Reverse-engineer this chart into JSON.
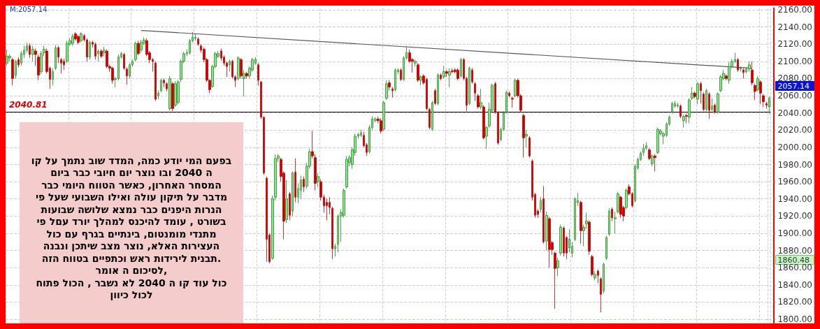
{
  "chart_data": {
    "type": "candlestick",
    "categories": [
      null,
      null,
      null,
      null,
      null,
      null,
      null,
      null,
      null,
      null,
      null,
      null,
      null,
      null,
      null,
      null,
      null,
      null,
      null,
      null,
      null,
      null,
      null,
      null,
      null,
      null,
      null,
      null,
      null,
      null,
      null,
      null,
      null,
      null,
      null,
      null,
      null,
      null,
      null,
      null,
      null,
      null,
      null,
      null,
      null,
      null,
      null,
      null,
      null,
      null,
      null,
      null,
      null,
      null,
      null,
      null,
      null,
      null,
      null,
      null,
      null,
      null,
      null,
      null,
      null,
      null,
      null,
      null,
      null,
      null,
      null,
      null,
      null,
      null,
      null,
      null,
      null,
      null,
      null,
      null,
      null,
      null,
      null,
      null,
      null,
      null,
      null,
      null,
      null,
      null,
      null,
      null,
      null,
      null,
      null,
      null,
      null,
      null,
      null,
      null,
      null,
      null,
      null,
      null,
      null,
      null,
      null,
      null,
      null,
      null,
      null,
      null,
      null,
      null,
      null,
      null,
      null,
      null,
      null,
      null,
      null,
      null,
      null,
      null,
      null,
      null,
      null,
      null,
      null,
      null,
      null,
      null,
      null,
      null,
      null,
      null,
      null,
      null,
      null,
      null,
      null,
      null,
      null,
      null,
      null,
      null,
      null,
      null,
      null,
      null,
      null,
      null,
      null,
      null,
      null,
      null,
      null,
      null,
      null,
      null,
      null,
      null,
      null,
      null,
      null,
      null,
      null,
      null,
      null,
      null,
      null,
      null,
      null,
      null,
      null,
      null,
      null,
      null,
      null,
      null,
      null,
      null,
      null,
      null,
      null,
      null,
      null,
      null,
      null,
      null,
      null,
      null,
      null,
      null,
      null,
      null,
      null,
      null,
      null,
      null,
      null,
      null,
      null,
      null,
      null,
      null,
      null,
      null,
      null,
      null,
      null,
      null,
      null,
      null,
      null,
      null,
      null,
      null,
      null,
      null,
      null,
      null,
      null,
      null,
      null,
      null,
      null,
      null,
      null,
      null,
      null,
      null,
      null,
      null,
      null,
      null,
      null,
      null,
      null,
      null,
      null,
      null,
      null,
      null,
      null,
      null,
      null,
      null,
      null,
      null,
      null,
      null,
      null,
      null,
      null,
      null,
      null,
      null,
      null,
      null,
      null,
      null,
      null,
      null,
      null,
      null,
      null,
      null
    ],
    "ohlc": [
      [
        2098,
        2114,
        2095,
        2106
      ],
      [
        2104,
        2108,
        2100,
        2106
      ],
      [
        2102,
        2104,
        2072,
        2080
      ],
      [
        2084,
        2102,
        2080,
        2100
      ],
      [
        2102,
        2105,
        2093,
        2096
      ],
      [
        2098,
        2112,
        2095,
        2109
      ],
      [
        2108,
        2118,
        2104,
        2113
      ],
      [
        2113,
        2122,
        2110,
        2118
      ],
      [
        2118,
        2121,
        2104,
        2108
      ],
      [
        2108,
        2118,
        2100,
        2114
      ],
      [
        2112,
        2115,
        2095,
        2108
      ],
      [
        2105,
        2108,
        2078,
        2084
      ],
      [
        2088,
        2112,
        2085,
        2109
      ],
      [
        2110,
        2118,
        2106,
        2114
      ],
      [
        2112,
        2115,
        2086,
        2088
      ],
      [
        2092,
        2094,
        2068,
        2079
      ],
      [
        2079,
        2092,
        2072,
        2088
      ],
      [
        2092,
        2119,
        2090,
        2116
      ],
      [
        2116,
        2118,
        2098,
        2105
      ],
      [
        2102,
        2104,
        2086,
        2098
      ],
      [
        2100,
        2103,
        2090,
        2096
      ],
      [
        2100,
        2124,
        2098,
        2121
      ],
      [
        2120,
        2127,
        2118,
        2124
      ],
      [
        2121,
        2132,
        2118,
        2129
      ],
      [
        2132,
        2134,
        2124,
        2126
      ],
      [
        2129,
        2131,
        2120,
        2122
      ],
      [
        2124,
        2134,
        2122,
        2132
      ],
      [
        2130,
        2132,
        2123,
        2125
      ],
      [
        2125,
        2127,
        2100,
        2105
      ],
      [
        2105,
        2124,
        2102,
        2122
      ],
      [
        2122,
        2124,
        2116,
        2120
      ],
      [
        2120,
        2122,
        2102,
        2106
      ],
      [
        2109,
        2114,
        2100,
        2112
      ],
      [
        2112,
        2114,
        2104,
        2106
      ],
      [
        2110,
        2117,
        2106,
        2113
      ],
      [
        2112,
        2114,
        2092,
        2094
      ],
      [
        2094,
        2096,
        2088,
        2092
      ],
      [
        2092,
        2094,
        2074,
        2078
      ],
      [
        2079,
        2082,
        2070,
        2080
      ],
      [
        2080,
        2108,
        2078,
        2105
      ],
      [
        2105,
        2111,
        2103,
        2109
      ],
      [
        2108,
        2110,
        2090,
        2092
      ],
      [
        2091,
        2093,
        2073,
        2083
      ],
      [
        2083,
        2098,
        2080,
        2096
      ],
      [
        2096,
        2102,
        2094,
        2100
      ],
      [
        2102,
        2123,
        2100,
        2121
      ],
      [
        2121,
        2124,
        2107,
        2109
      ],
      [
        2113,
        2125,
        2110,
        2122
      ],
      [
        2121,
        2128,
        2119,
        2125
      ],
      [
        2124,
        2127,
        2106,
        2108
      ],
      [
        2110,
        2112,
        2098,
        2102
      ],
      [
        2102,
        2104,
        2088,
        2100
      ],
      [
        2098,
        2100,
        2054,
        2056
      ],
      [
        2060,
        2066,
        2056,
        2063
      ],
      [
        2066,
        2080,
        2064,
        2078
      ],
      [
        2078,
        2080,
        2070,
        2075
      ],
      [
        2074,
        2076,
        2065,
        2068
      ],
      [
        2045,
        2083,
        2043,
        2080
      ],
      [
        2074,
        2076,
        2042,
        2045
      ],
      [
        2049,
        2077,
        2047,
        2074
      ],
      [
        2052,
        2078,
        2050,
        2076
      ],
      [
        2079,
        2102,
        2076,
        2100
      ],
      [
        2100,
        2111,
        2098,
        2109
      ],
      [
        2109,
        2114,
        2106,
        2110
      ],
      [
        2110,
        2126,
        2108,
        2124
      ],
      [
        2124,
        2134,
        2122,
        2128
      ],
      [
        2127,
        2132,
        2124,
        2128
      ],
      [
        2126,
        2128,
        2118,
        2120
      ],
      [
        2118,
        2120,
        2110,
        2113
      ],
      [
        2114,
        2116,
        2099,
        2102
      ],
      [
        2102,
        2104,
        2076,
        2078
      ],
      [
        2078,
        2079,
        2063,
        2067
      ],
      [
        2071,
        2096,
        2069,
        2094
      ],
      [
        2094,
        2111,
        2092,
        2109
      ],
      [
        2106,
        2112,
        2104,
        2109
      ],
      [
        2112,
        2115,
        2101,
        2104
      ],
      [
        2105,
        2107,
        2095,
        2098
      ],
      [
        2098,
        2100,
        2082,
        2094
      ],
      [
        2096,
        2102,
        2088,
        2100
      ],
      [
        2100,
        2102,
        2080,
        2082
      ],
      [
        2082,
        2084,
        2070,
        2078
      ],
      [
        2080,
        2106,
        2078,
        2104
      ],
      [
        2102,
        2104,
        2080,
        2083
      ],
      [
        2080,
        2090,
        2059,
        2086
      ],
      [
        2086,
        2088,
        2080,
        2083
      ],
      [
        2083,
        2094,
        2080,
        2092
      ],
      [
        2090,
        2104,
        2088,
        2102
      ],
      [
        2098,
        2105,
        2096,
        2102
      ],
      [
        2096,
        2098,
        2072,
        2078
      ],
      [
        2076,
        2077,
        2033,
        2035
      ],
      [
        2035,
        2036,
        1968,
        1970
      ],
      [
        1964,
        1966,
        1867,
        1893
      ],
      [
        1898,
        1900,
        1865,
        1867
      ],
      [
        1871,
        1944,
        1869,
        1940
      ],
      [
        1942,
        1992,
        1938,
        1987
      ],
      [
        1987,
        1992,
        1983,
        1990
      ],
      [
        1986,
        1988,
        1960,
        1966
      ],
      [
        1970,
        1972,
        1893,
        1914
      ],
      [
        1916,
        1962,
        1912,
        1940
      ],
      [
        1946,
        1948,
        1915,
        1921
      ],
      [
        1926,
        1972,
        1920,
        1970
      ],
      [
        1971,
        1987,
        1936,
        1942
      ],
      [
        1942,
        1958,
        1935,
        1952
      ],
      [
        1950,
        1967,
        1940,
        1962
      ],
      [
        1963,
        1966,
        1948,
        1954
      ],
      [
        1955,
        1982,
        1952,
        1978
      ],
      [
        1978,
        1998,
        1975,
        1995
      ],
      [
        1995,
        2019,
        1987,
        1990
      ],
      [
        1988,
        1992,
        1950,
        1958
      ],
      [
        1960,
        1970,
        1954,
        1966
      ],
      [
        1960,
        1963,
        1938,
        1942
      ],
      [
        1942,
        1945,
        1924,
        1932
      ],
      [
        1936,
        1940,
        1915,
        1932
      ],
      [
        1936,
        1942,
        1922,
        1930
      ],
      [
        1929,
        1931,
        1870,
        1882
      ],
      [
        1882,
        1888,
        1873,
        1885
      ],
      [
        1887,
        1922,
        1878,
        1920
      ],
      [
        1920,
        1928,
        1890,
        1924
      ],
      [
        1921,
        1952,
        1918,
        1950
      ],
      [
        1954,
        1990,
        1952,
        1986
      ],
      [
        1982,
        1991,
        1978,
        1988
      ],
      [
        1980,
        2000,
        1975,
        1997
      ],
      [
        1994,
        2016,
        1990,
        2013
      ],
      [
        2013,
        2017,
        2010,
        2015
      ],
      [
        2014,
        2020,
        2012,
        2017
      ],
      [
        2014,
        2018,
        2000,
        2002
      ],
      [
        2003,
        2005,
        1990,
        1994
      ],
      [
        1995,
        2026,
        1993,
        2023
      ],
      [
        2023,
        2036,
        2020,
        2033
      ],
      [
        2031,
        2035,
        2029,
        2033
      ],
      [
        2033,
        2036,
        2028,
        2031
      ],
      [
        2031,
        2034,
        2016,
        2019
      ],
      [
        2021,
        2054,
        2019,
        2052
      ],
      [
        2057,
        2078,
        2055,
        2074
      ],
      [
        2075,
        2078,
        2066,
        2070
      ],
      [
        2068,
        2070,
        2058,
        2066
      ],
      [
        2067,
        2092,
        2065,
        2090
      ],
      [
        2088,
        2092,
        2085,
        2090
      ],
      [
        2090,
        2092,
        2077,
        2079
      ],
      [
        2079,
        2106,
        2077,
        2104
      ],
      [
        2104,
        2117,
        2102,
        2110
      ],
      [
        2110,
        2114,
        2098,
        2100
      ],
      [
        2102,
        2104,
        2087,
        2100
      ],
      [
        2098,
        2102,
        2094,
        2100
      ],
      [
        2096,
        2098,
        2076,
        2078
      ],
      [
        2078,
        2084,
        2072,
        2082
      ],
      [
        2083,
        2085,
        2073,
        2075
      ],
      [
        2079,
        2081,
        2043,
        2045
      ],
      [
        2044,
        2046,
        2021,
        2023
      ],
      [
        2021,
        2054,
        2019,
        2052
      ],
      [
        2066,
        2068,
        2049,
        2051
      ],
      [
        2051,
        2086,
        2049,
        2084
      ],
      [
        2084,
        2086,
        2078,
        2080
      ],
      [
        2082,
        2095,
        2080,
        2088
      ],
      [
        2088,
        2090,
        2082,
        2086
      ],
      [
        2084,
        2092,
        2070,
        2088
      ],
      [
        2089,
        2092,
        2086,
        2088
      ],
      [
        2090,
        2092,
        2086,
        2088
      ],
      [
        2090,
        2092,
        2078,
        2080
      ],
      [
        2083,
        2104,
        2081,
        2102
      ],
      [
        2102,
        2104,
        2078,
        2080
      ],
      [
        2080,
        2082,
        2042,
        2049
      ],
      [
        2051,
        2094,
        2049,
        2092
      ],
      [
        2090,
        2092,
        2074,
        2076
      ],
      [
        2074,
        2076,
        2054,
        2063
      ],
      [
        2060,
        2062,
        2045,
        2047
      ],
      [
        2047,
        2068,
        2044,
        2052
      ],
      [
        2047,
        2049,
        2009,
        2011
      ],
      [
        2013,
        2025,
        1998,
        2023
      ],
      [
        2025,
        2052,
        2023,
        2044
      ],
      [
        2043,
        2074,
        2041,
        2072
      ],
      [
        2074,
        2076,
        2039,
        2041
      ],
      [
        2040,
        2042,
        2003,
        2005
      ],
      [
        2009,
        2023,
        2007,
        2021
      ],
      [
        2021,
        2042,
        2019,
        2040
      ],
      [
        2041,
        2066,
        2039,
        2064
      ],
      [
        2063,
        2065,
        2058,
        2060
      ],
      [
        2057,
        2059,
        2046,
        2056
      ],
      [
        2060,
        2080,
        2058,
        2078
      ],
      [
        2078,
        2080,
        2058,
        2060
      ],
      [
        2060,
        2062,
        2041,
        2043
      ],
      [
        2037,
        2039,
        1988,
        2011
      ],
      [
        2013,
        2020,
        2000,
        2015
      ],
      [
        2011,
        2013,
        1988,
        1990
      ],
      [
        1984,
        1986,
        1938,
        1942
      ],
      [
        1945,
        1947,
        1918,
        1921
      ],
      [
        1926,
        1928,
        1918,
        1922
      ],
      [
        1928,
        1942,
        1924,
        1938
      ],
      [
        1940,
        1955,
        1888,
        1890
      ],
      [
        1891,
        1925,
        1880,
        1921
      ],
      [
        1917,
        1919,
        1860,
        1881
      ],
      [
        1889,
        1891,
        1875,
        1881
      ],
      [
        1877,
        1879,
        1812,
        1859
      ],
      [
        1860,
        1872,
        1850,
        1868
      ],
      [
        1877,
        1910,
        1874,
        1907
      ],
      [
        1906,
        1908,
        1873,
        1877
      ],
      [
        1895,
        1897,
        1870,
        1877
      ],
      [
        1883,
        1905,
        1878,
        1893
      ],
      [
        1877,
        1890,
        1872,
        1885
      ],
      [
        1893,
        1942,
        1891,
        1940
      ],
      [
        1936,
        1947,
        1932,
        1938
      ],
      [
        1936,
        1938,
        1888,
        1903
      ],
      [
        1903,
        1910,
        1885,
        1907
      ],
      [
        1911,
        1924,
        1905,
        1914
      ],
      [
        1913,
        1915,
        1875,
        1879
      ],
      [
        1873,
        1875,
        1850,
        1852
      ],
      [
        1848,
        1856,
        1845,
        1852
      ],
      [
        1856,
        1858,
        1842,
        1851
      ],
      [
        1847,
        1849,
        1808,
        1829
      ],
      [
        1833,
        1866,
        1830,
        1864
      ],
      [
        1871,
        1897,
        1869,
        1895
      ],
      [
        1899,
        1929,
        1897,
        1926
      ],
      [
        1928,
        1930,
        1914,
        1918
      ],
      [
        1917,
        1925,
        1900,
        1918
      ],
      [
        1925,
        1948,
        1923,
        1946
      ],
      [
        1942,
        1944,
        1918,
        1922
      ],
      [
        1930,
        1932,
        1914,
        1920
      ],
      [
        1930,
        1952,
        1928,
        1950
      ],
      [
        1954,
        1957,
        1944,
        1946
      ],
      [
        1946,
        1948,
        1930,
        1932
      ],
      [
        1938,
        1980,
        1936,
        1978
      ],
      [
        1976,
        1988,
        1974,
        1986
      ],
      [
        1986,
        1995,
        1984,
        1993
      ],
      [
        1994,
        2004,
        1990,
        1999
      ],
      [
        1999,
        2006,
        1997,
        2002
      ],
      [
        1997,
        1999,
        1985,
        1987
      ],
      [
        1981,
        1992,
        1978,
        1990
      ],
      [
        1990,
        1992,
        1972,
        1988
      ],
      [
        1994,
        2023,
        1992,
        2021
      ],
      [
        2016,
        2021,
        2014,
        2019
      ],
      [
        2013,
        2018,
        2004,
        2016
      ],
      [
        2014,
        2029,
        2012,
        2027
      ],
      [
        2027,
        2037,
        2025,
        2035
      ],
      [
        2041,
        2053,
        2039,
        2051
      ],
      [
        2048,
        2054,
        2046,
        2051
      ],
      [
        2048,
        2052,
        2046,
        2049
      ],
      [
        2048,
        2050,
        2034,
        2036
      ],
      [
        2031,
        2038,
        2023,
        2036
      ],
      [
        2037,
        2039,
        2028,
        2036
      ],
      [
        2035,
        2057,
        2028,
        2055
      ],
      [
        2057,
        2070,
        2055,
        2063
      ],
      [
        2063,
        2065,
        2057,
        2059
      ],
      [
        2056,
        2076,
        2050,
        2074
      ],
      [
        2074,
        2076,
        2051,
        2066
      ],
      [
        2062,
        2064,
        2042,
        2044
      ],
      [
        2044,
        2068,
        2042,
        2066
      ],
      [
        2062,
        2064,
        2033,
        2043
      ],
      [
        2044,
        2057,
        2042,
        2048
      ],
      [
        2049,
        2051,
        2039,
        2041
      ],
      [
        2041,
        2064,
        2039,
        2062
      ],
      [
        2066,
        2084,
        2064,
        2082
      ],
      [
        2080,
        2090,
        2078,
        2086
      ],
      [
        2083,
        2085,
        2078,
        2080
      ],
      [
        2078,
        2099,
        2074,
        2094
      ],
      [
        2094,
        2103,
        2092,
        2100
      ],
      [
        2100,
        2110,
        2098,
        2102
      ],
      [
        2102,
        2104,
        2088,
        2090
      ],
      [
        2091,
        2094,
        2088,
        2092
      ],
      [
        2090,
        2092,
        2080,
        2087
      ],
      [
        2088,
        2093,
        2086,
        2091
      ],
      [
        2091,
        2100,
        2088,
        2096
      ],
      [
        2090,
        2100,
        2072,
        2075
      ],
      [
        2072,
        2074,
        2055,
        2065
      ],
      [
        2067,
        2083,
        2065,
        2080
      ],
      [
        2076,
        2078,
        2050,
        2063
      ],
      [
        2060,
        2062,
        2047,
        2053
      ],
      [
        2051,
        2053,
        2045,
        2049
      ],
      [
        2047,
        2059,
        2039,
        2057.14
      ]
    ],
    "series": [
      {
        "type": "line",
        "color": "#555555",
        "values": [
          null,
          null,
          null,
          null,
          null,
          null,
          null,
          null,
          null,
          null,
          null,
          null,
          null,
          null,
          null,
          null,
          null,
          null,
          null,
          null,
          null,
          null,
          null,
          null,
          null,
          null,
          null,
          null,
          null,
          null,
          null,
          null,
          null,
          null,
          null,
          null,
          null,
          null,
          null,
          null,
          null,
          null,
          null,
          null,
          null,
          null,
          null,
          2136,
          null,
          null,
          null,
          null,
          null,
          null,
          null,
          null,
          null,
          null,
          null,
          null,
          null,
          null,
          null,
          null,
          null,
          null,
          null,
          null,
          null,
          null,
          null,
          null,
          null,
          null,
          null,
          null,
          null,
          null,
          null,
          null,
          null,
          null,
          null,
          null,
          null,
          null,
          null,
          null,
          null,
          null,
          null,
          null,
          null,
          null,
          null,
          null,
          null,
          null,
          null,
          null,
          null,
          null,
          null,
          null,
          null,
          null,
          null,
          null,
          null,
          null,
          null,
          null,
          null,
          null,
          null,
          null,
          null,
          null,
          null,
          null,
          null,
          null,
          null,
          null,
          null,
          null,
          null,
          null,
          null,
          null,
          null,
          null,
          null,
          null,
          null,
          null,
          null,
          null,
          null,
          null,
          null,
          null,
          null,
          null,
          null,
          null,
          null,
          null,
          null,
          null,
          null,
          null,
          null,
          null,
          null,
          null,
          null,
          null,
          null,
          null,
          null,
          null,
          null,
          null,
          null,
          null,
          null,
          null,
          null,
          null,
          null,
          null,
          null,
          null,
          null,
          null,
          null,
          null,
          null,
          null,
          null,
          null,
          null,
          null,
          null,
          null,
          null,
          null,
          null,
          null,
          null,
          null,
          null,
          null,
          null,
          null,
          null,
          null,
          null,
          null,
          null,
          null,
          null,
          null,
          null,
          null,
          null,
          null,
          null,
          null,
          null,
          null,
          null,
          null,
          null,
          null,
          null,
          null,
          null,
          null,
          null,
          null,
          null,
          null,
          null,
          null,
          null,
          null,
          null,
          null,
          null,
          null,
          null,
          null,
          null,
          null,
          null,
          null,
          null,
          null,
          null,
          null,
          null,
          null,
          null,
          null,
          null,
          null,
          null,
          null,
          null,
          null,
          null,
          null,
          null,
          null,
          null,
          null,
          null,
          null,
          null,
          2092,
          null,
          null,
          null,
          null,
          null,
          null
        ]
      }
    ],
    "ylim": [
      1796,
      2162
    ],
    "yticks": [
      {
        "value": 1800,
        "label": "1800.00"
      },
      {
        "value": 1820,
        "label": "1820.00"
      },
      {
        "value": 1840,
        "label": "1840.00"
      },
      {
        "value": 1860,
        "label": "1860.00"
      },
      {
        "value": 1880,
        "label": "1880.00"
      },
      {
        "value": 1900,
        "label": "1900.00"
      },
      {
        "value": 1920,
        "label": "1920.00"
      },
      {
        "value": 1940,
        "label": "1940.00"
      },
      {
        "value": 1960,
        "label": "1960.00"
      },
      {
        "value": 1980,
        "label": "1980.00"
      },
      {
        "value": 2000,
        "label": "2000.00"
      },
      {
        "value": 2020,
        "label": "2020.00"
      },
      {
        "value": 2040,
        "label": "2040.00"
      },
      {
        "value": 2060,
        "label": "2060.00"
      },
      {
        "value": 2080,
        "label": "2080.00"
      },
      {
        "value": 2100,
        "label": "2100.00"
      },
      {
        "value": 2120,
        "label": "2120.00"
      },
      {
        "value": 2140,
        "label": "2140.00"
      },
      {
        "value": 2160,
        "label": "2160.00"
      }
    ],
    "tick_labels": "y",
    "grid": true,
    "ref_lines": [
      {
        "axis": "y",
        "value": 2040.81,
        "label": "2040.81",
        "color": "#000000"
      }
    ],
    "annotations": [
      "M:2057.14",
      "2057.14",
      "1860.48",
      "בפעם המי יודע כמה, המדד שוב נתמך על קו\nה 2040 ובו נוצר יום חיובי כבר ביום\nהמסחר האחרון, כאשר הטווח היומי כבר\nמדבר על תיקון עולה ואילו השבועי שעל פי\nהנרות היפנים כבר נמצא שלושה שבועות\nבשורט , עומד להיכנס למהלך יורד עםל פי\nמתנדי מומנטום, בינתיים בגרף עם כול\nהעצירות האלא, נוצר מצב שיתכן ונבנה\nתבנית לירידות ראש וכתפיים בטווח הזה.\nלסיכום ה אומר,\nכול עוד קו ה 2040 לא נשבר , הכול פתוח\nלכול כיוון"
    ]
  }
}
